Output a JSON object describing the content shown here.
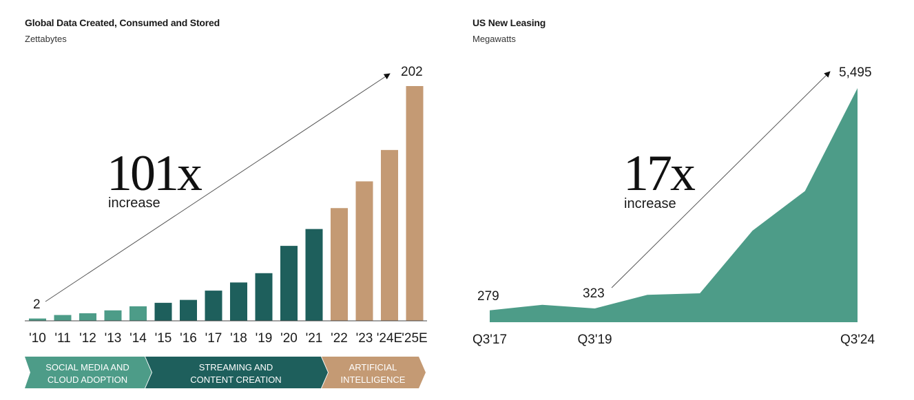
{
  "chart_data": [
    {
      "type": "bar",
      "title": "Global Data Created, Consumed and Stored",
      "subtitle": "Zettabytes",
      "categories": [
        "'10",
        "'11",
        "'12",
        "'13",
        "'14",
        "'15",
        "'16",
        "'17",
        "'18",
        "'19",
        "'20",
        "'21",
        "'22",
        "'23",
        "'24E",
        "'25E"
      ],
      "values": [
        2,
        5,
        6.5,
        9,
        12.5,
        15.5,
        18,
        26,
        33,
        41,
        64.5,
        79,
        97,
        120,
        147,
        202
      ],
      "bar_groups": [
        0,
        0,
        0,
        0,
        0,
        1,
        1,
        1,
        1,
        1,
        1,
        1,
        2,
        2,
        2,
        2
      ],
      "group_colors": [
        "#4d9c88",
        "#1e5f5c",
        "#c49a74"
      ],
      "ylim": [
        0,
        202
      ],
      "data_labels": {
        "first": "2",
        "last": "202"
      },
      "annotation": {
        "big": "101x",
        "small": "increase"
      },
      "bands": [
        {
          "label_line1": "SOCIAL MEDIA AND",
          "label_line2": "CLOUD ADOPTION",
          "color": "#4d9c88"
        },
        {
          "label_line1": "STREAMING AND",
          "label_line2": "CONTENT CREATION",
          "color": "#1e5f5c"
        },
        {
          "label_line1": "ARTIFICIAL",
          "label_line2": "INTELLIGENCE",
          "color": "#c49a74"
        }
      ]
    },
    {
      "type": "area",
      "title": "US New Leasing",
      "subtitle": "Megawatts",
      "color": "#4d9c88",
      "values": [
        279,
        408,
        323,
        643,
        679,
        2148,
        3079,
        5495
      ],
      "ylim": [
        0,
        5495
      ],
      "tick_labels": [
        {
          "index": 0,
          "label": "Q3'17"
        },
        {
          "index": 2,
          "label": "Q3'19"
        },
        {
          "index": 7,
          "label": "Q3'24"
        }
      ],
      "data_labels": {
        "first": "279",
        "mid": "323",
        "last": "5,495"
      },
      "annotation": {
        "big": "17x",
        "small": "increase"
      }
    }
  ]
}
